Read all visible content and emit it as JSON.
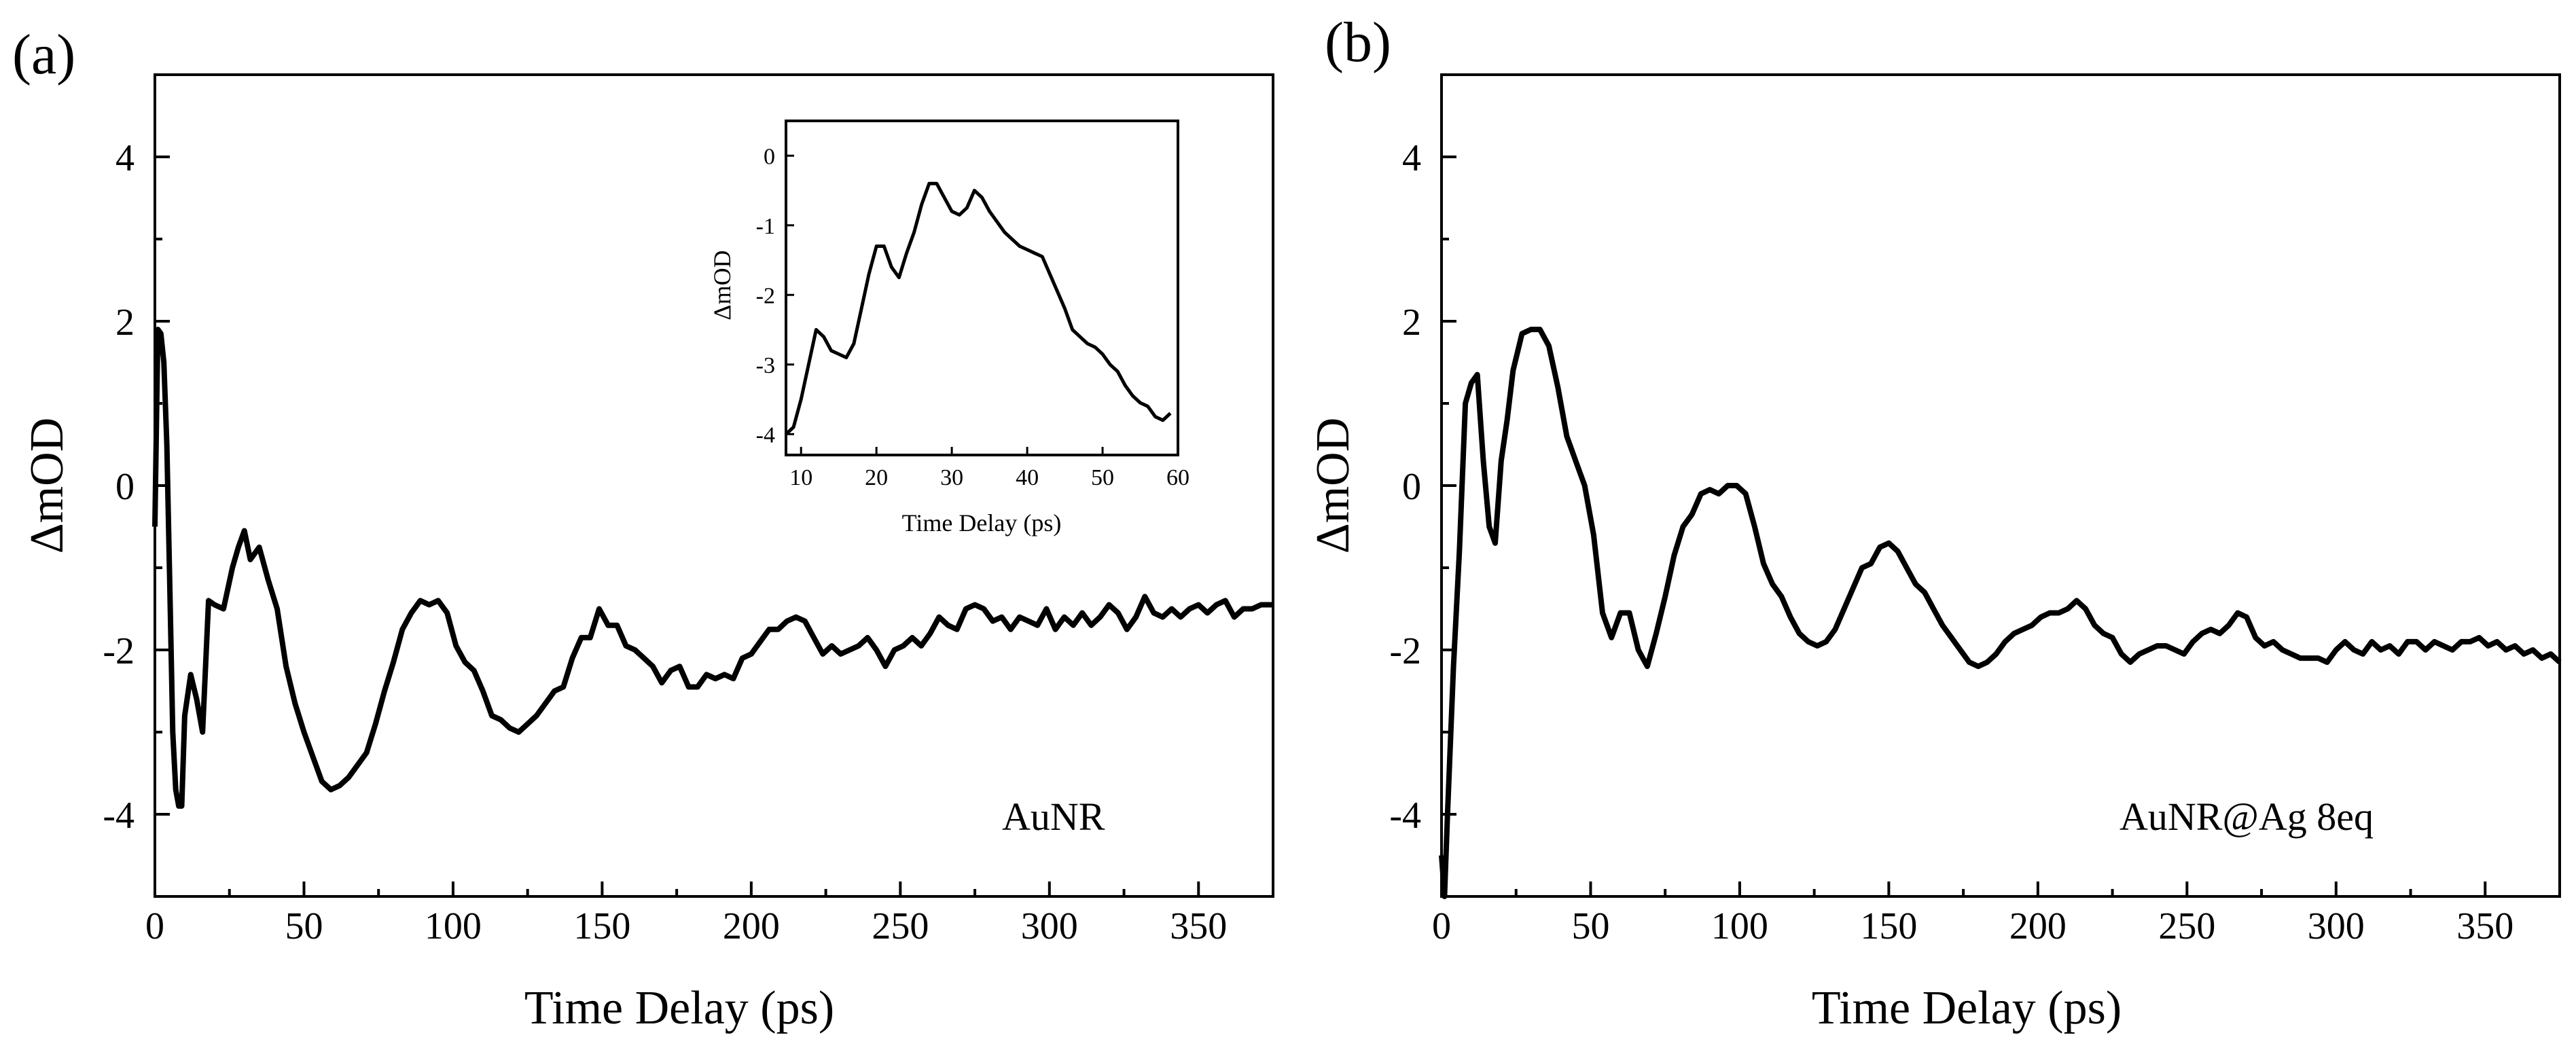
{
  "panels": [
    {
      "label": "(a)",
      "annotation": "AuNR",
      "chart_data": {
        "type": "line",
        "title": "",
        "xlabel": "Time Delay (ps)",
        "ylabel": "ΔmOD",
        "xlim": [
          0,
          375
        ],
        "ylim": [
          -5,
          5
        ],
        "xticks": [
          0,
          50,
          100,
          150,
          200,
          250,
          300,
          350
        ],
        "yticks": [
          -4,
          -2,
          0,
          2,
          4
        ],
        "series": [
          {
            "name": "AuNR",
            "x": [
              0,
              1,
              2,
              3,
              4,
              5,
              6,
              7,
              8,
              9,
              10,
              12,
              14,
              16,
              18,
              20,
              23,
              26,
              28,
              30,
              32,
              35,
              38,
              41,
              44,
              47,
              50,
              53,
              56,
              59,
              62,
              65,
              68,
              71,
              74,
              77,
              80,
              83,
              86,
              89,
              92,
              95,
              98,
              101,
              104,
              107,
              110,
              113,
              116,
              119,
              122,
              125,
              128,
              131,
              134,
              137,
              140,
              143,
              146,
              149,
              152,
              155,
              158,
              161,
              164,
              167,
              170,
              173,
              176,
              179,
              182,
              185,
              188,
              191,
              194,
              197,
              200,
              203,
              206,
              209,
              212,
              215,
              218,
              221,
              224,
              227,
              230,
              233,
              236,
              239,
              242,
              245,
              248,
              251,
              254,
              257,
              260,
              263,
              266,
              269,
              272,
              275,
              278,
              281,
              284,
              287,
              290,
              293,
              296,
              299,
              302,
              305,
              308,
              311,
              314,
              317,
              320,
              323,
              326,
              329,
              332,
              335,
              338,
              341,
              344,
              347,
              350,
              353,
              356,
              359,
              362,
              365,
              368,
              371,
              375
            ],
            "y": [
              -0.5,
              1.9,
              1.85,
              1.5,
              0.5,
              -1.2,
              -3.0,
              -3.7,
              -3.9,
              -3.9,
              -2.8,
              -2.3,
              -2.6,
              -3.0,
              -1.4,
              -1.45,
              -1.5,
              -1.0,
              -0.75,
              -0.55,
              -0.9,
              -0.75,
              -1.15,
              -1.5,
              -2.2,
              -2.65,
              -3.0,
              -3.3,
              -3.6,
              -3.7,
              -3.65,
              -3.55,
              -3.4,
              -3.25,
              -2.9,
              -2.5,
              -2.15,
              -1.75,
              -1.55,
              -1.4,
              -1.45,
              -1.4,
              -1.55,
              -1.95,
              -2.15,
              -2.25,
              -2.5,
              -2.8,
              -2.85,
              -2.95,
              -3.0,
              -2.9,
              -2.8,
              -2.65,
              -2.5,
              -2.45,
              -2.1,
              -1.85,
              -1.85,
              -1.5,
              -1.7,
              -1.7,
              -1.95,
              -2.0,
              -2.1,
              -2.2,
              -2.4,
              -2.25,
              -2.2,
              -2.45,
              -2.45,
              -2.3,
              -2.35,
              -2.3,
              -2.35,
              -2.1,
              -2.05,
              -1.9,
              -1.75,
              -1.75,
              -1.65,
              -1.6,
              -1.65,
              -1.85,
              -2.05,
              -1.95,
              -2.05,
              -2.0,
              -1.95,
              -1.85,
              -2.0,
              -2.2,
              -2.0,
              -1.95,
              -1.85,
              -1.95,
              -1.8,
              -1.6,
              -1.7,
              -1.75,
              -1.5,
              -1.45,
              -1.5,
              -1.65,
              -1.6,
              -1.75,
              -1.6,
              -1.65,
              -1.7,
              -1.5,
              -1.75,
              -1.6,
              -1.7,
              -1.55,
              -1.7,
              -1.6,
              -1.45,
              -1.55,
              -1.75,
              -1.6,
              -1.35,
              -1.55,
              -1.6,
              -1.5,
              -1.6,
              -1.5,
              -1.45,
              -1.55,
              -1.45,
              -1.4,
              -1.6,
              -1.5,
              -1.5,
              -1.45,
              -1.45
            ]
          }
        ]
      },
      "inset": {
        "chart_data": {
          "type": "line",
          "title": "",
          "xlabel": "Time Delay (ps)",
          "ylabel": "ΔmOD",
          "xlim": [
            8,
            60
          ],
          "ylim": [
            -4.3,
            0.5
          ],
          "xticks": [
            10,
            20,
            30,
            40,
            50,
            60
          ],
          "yticks": [
            0,
            -1,
            -2,
            -3,
            -4
          ],
          "series": [
            {
              "name": "AuNR (inset)",
              "x": [
                8,
                9,
                10,
                11,
                12,
                13,
                14,
                15,
                16,
                17,
                18,
                19,
                20,
                21,
                22,
                23,
                24,
                25,
                26,
                27,
                28,
                29,
                30,
                31,
                32,
                33,
                34,
                35,
                36,
                37,
                38,
                39,
                40,
                41,
                42,
                43,
                44,
                45,
                46,
                47,
                48,
                49,
                50,
                51,
                52,
                53,
                54,
                55,
                56,
                57,
                58,
                59
              ],
              "y": [
                -4.0,
                -3.9,
                -3.5,
                -3.0,
                -2.5,
                -2.6,
                -2.8,
                -2.85,
                -2.9,
                -2.7,
                -2.2,
                -1.7,
                -1.3,
                -1.3,
                -1.6,
                -1.75,
                -1.4,
                -1.1,
                -0.7,
                -0.4,
                -0.4,
                -0.6,
                -0.8,
                -0.85,
                -0.75,
                -0.5,
                -0.6,
                -0.8,
                -0.95,
                -1.1,
                -1.2,
                -1.3,
                -1.35,
                -1.4,
                -1.45,
                -1.7,
                -1.95,
                -2.2,
                -2.5,
                -2.6,
                -2.7,
                -2.75,
                -2.85,
                -3.0,
                -3.1,
                -3.3,
                -3.45,
                -3.55,
                -3.6,
                -3.75,
                -3.8,
                -3.7
              ]
            }
          ]
        }
      }
    },
    {
      "label": "(b)",
      "annotation": "AuNR@Ag 8eq",
      "chart_data": {
        "type": "line",
        "title": "",
        "xlabel": "Time Delay (ps)",
        "ylabel": "ΔmOD",
        "xlim": [
          0,
          375
        ],
        "ylim": [
          -5,
          5
        ],
        "xticks": [
          0,
          50,
          100,
          150,
          200,
          250,
          300,
          350
        ],
        "yticks": [
          -4,
          -2,
          0,
          2,
          4
        ],
        "series": [
          {
            "name": "AuNR@Ag 8eq",
            "x": [
              0,
              1,
              2,
              4,
              6,
              8,
              10,
              12,
              14,
              16,
              18,
              20,
              22,
              24,
              27,
              30,
              33,
              36,
              39,
              42,
              45,
              48,
              51,
              54,
              57,
              60,
              63,
              66,
              69,
              72,
              75,
              78,
              81,
              84,
              87,
              90,
              93,
              96,
              99,
              102,
              105,
              108,
              111,
              114,
              117,
              120,
              123,
              126,
              129,
              132,
              135,
              138,
              141,
              144,
              147,
              150,
              153,
              156,
              159,
              162,
              165,
              168,
              171,
              174,
              177,
              180,
              183,
              186,
              189,
              192,
              195,
              198,
              201,
              204,
              207,
              210,
              213,
              216,
              219,
              222,
              225,
              228,
              231,
              234,
              237,
              240,
              243,
              246,
              249,
              252,
              255,
              258,
              261,
              264,
              267,
              270,
              273,
              276,
              279,
              282,
              285,
              288,
              291,
              294,
              297,
              300,
              303,
              306,
              309,
              312,
              315,
              318,
              321,
              324,
              327,
              330,
              333,
              336,
              339,
              342,
              345,
              348,
              351,
              354,
              357,
              360,
              363,
              366,
              369,
              372,
              375
            ],
            "y": [
              -4.5,
              -5.0,
              -4.0,
              -2.2,
              -0.8,
              1.0,
              1.25,
              1.35,
              0.3,
              -0.5,
              -0.7,
              0.3,
              0.8,
              1.4,
              1.85,
              1.9,
              1.9,
              1.7,
              1.2,
              0.6,
              0.3,
              0.0,
              -0.6,
              -1.55,
              -1.85,
              -1.55,
              -1.55,
              -2.0,
              -2.2,
              -1.8,
              -1.35,
              -0.85,
              -0.5,
              -0.35,
              -0.1,
              -0.05,
              -0.1,
              0.0,
              0.0,
              -0.1,
              -0.5,
              -0.95,
              -1.2,
              -1.35,
              -1.6,
              -1.8,
              -1.9,
              -1.95,
              -1.9,
              -1.75,
              -1.5,
              -1.25,
              -1.0,
              -0.95,
              -0.75,
              -0.7,
              -0.8,
              -1.0,
              -1.2,
              -1.3,
              -1.5,
              -1.7,
              -1.85,
              -2.0,
              -2.15,
              -2.2,
              -2.15,
              -2.05,
              -1.9,
              -1.8,
              -1.75,
              -1.7,
              -1.6,
              -1.55,
              -1.55,
              -1.5,
              -1.4,
              -1.5,
              -1.7,
              -1.8,
              -1.85,
              -2.05,
              -2.15,
              -2.05,
              -2.0,
              -1.95,
              -1.95,
              -2.0,
              -2.05,
              -1.9,
              -1.8,
              -1.75,
              -1.8,
              -1.7,
              -1.55,
              -1.6,
              -1.85,
              -1.95,
              -1.9,
              -2.0,
              -2.05,
              -2.1,
              -2.1,
              -2.1,
              -2.15,
              -2.0,
              -1.9,
              -2.0,
              -2.05,
              -1.9,
              -2.0,
              -1.95,
              -2.05,
              -1.9,
              -1.9,
              -2.0,
              -1.9,
              -1.95,
              -2.0,
              -1.9,
              -1.9,
              -1.85,
              -1.95,
              -1.9,
              -2.0,
              -1.95,
              -2.05,
              -2.0,
              -2.1,
              -2.05,
              -2.15
            ]
          }
        ]
      }
    }
  ]
}
